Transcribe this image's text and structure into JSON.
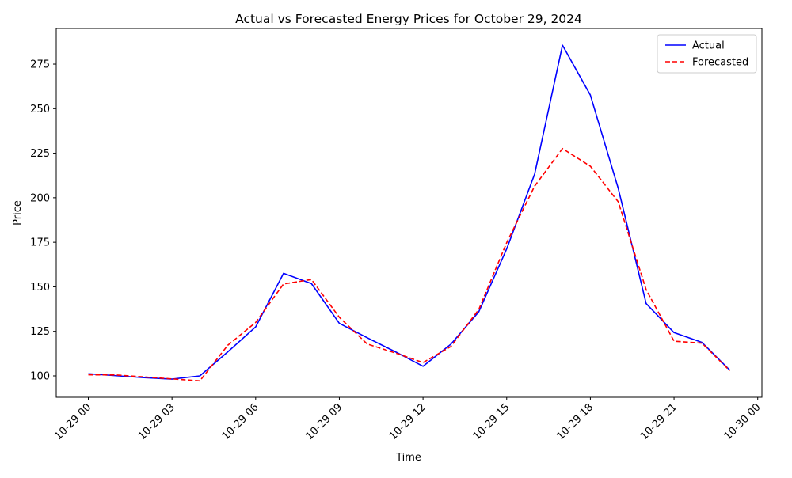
{
  "chart_data": {
    "type": "line",
    "title": "Actual vs Forecasted Energy Prices for October 29, 2024",
    "xlabel": "Time",
    "ylabel": "Price",
    "x": [
      "2024-10-29 00:00",
      "2024-10-29 01:00",
      "2024-10-29 02:00",
      "2024-10-29 03:00",
      "2024-10-29 04:00",
      "2024-10-29 05:00",
      "2024-10-29 06:00",
      "2024-10-29 07:00",
      "2024-10-29 08:00",
      "2024-10-29 09:00",
      "2024-10-29 10:00",
      "2024-10-29 11:00",
      "2024-10-29 12:00",
      "2024-10-29 13:00",
      "2024-10-29 14:00",
      "2024-10-29 15:00",
      "2024-10-29 16:00",
      "2024-10-29 17:00",
      "2024-10-29 18:00",
      "2024-10-29 19:00",
      "2024-10-29 20:00",
      "2024-10-29 21:00",
      "2024-10-29 22:00",
      "2024-10-29 23:00"
    ],
    "series": [
      {
        "name": "Actual",
        "color": "#0000ff",
        "dash": "solid",
        "values": [
          101.2,
          100.1,
          99.0,
          98.2,
          100.0,
          113.5,
          127.5,
          157.6,
          151.8,
          129.5,
          121.4,
          113.6,
          105.4,
          117.8,
          136.0,
          171.3,
          213.2,
          285.6,
          257.6,
          205.2,
          140.6,
          124.3,
          118.8,
          103.2
        ]
      },
      {
        "name": "Forecasted",
        "color": "#ff0000",
        "dash": "dashed",
        "values": [
          100.6,
          100.5,
          99.4,
          98.3,
          97.2,
          117.2,
          130.0,
          151.6,
          154.1,
          132.9,
          117.9,
          112.9,
          107.5,
          116.5,
          137.3,
          174.8,
          206.5,
          227.6,
          217.7,
          197.7,
          148.4,
          119.5,
          118.4,
          102.9
        ]
      }
    ],
    "x_tick_labels": [
      "10-29 00",
      "10-29 03",
      "10-29 06",
      "10-29 09",
      "10-29 12",
      "10-29 15",
      "10-29 18",
      "10-29 21",
      "10-30 00"
    ],
    "x_tick_hours": [
      0,
      3,
      6,
      9,
      12,
      15,
      18,
      21,
      24
    ],
    "xlim_hours": [
      -1.15,
      24.15
    ],
    "y_ticks": [
      100,
      125,
      150,
      175,
      200,
      225,
      250,
      275
    ],
    "ylim": [
      88.0,
      295.0
    ],
    "grid": false,
    "legend_position": "upper right"
  }
}
